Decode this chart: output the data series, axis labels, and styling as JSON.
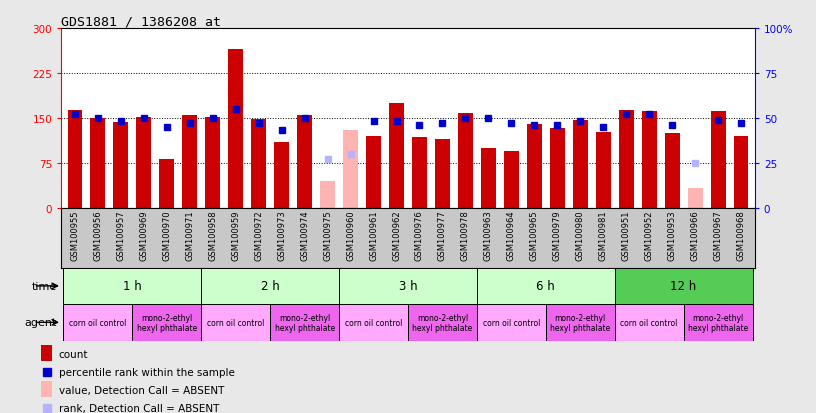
{
  "title": "GDS1881 / 1386208_at",
  "samples": [
    "GSM100955",
    "GSM100956",
    "GSM100957",
    "GSM100969",
    "GSM100970",
    "GSM100971",
    "GSM100958",
    "GSM100959",
    "GSM100972",
    "GSM100973",
    "GSM100974",
    "GSM100975",
    "GSM100960",
    "GSM100961",
    "GSM100962",
    "GSM100976",
    "GSM100977",
    "GSM100978",
    "GSM100963",
    "GSM100964",
    "GSM100965",
    "GSM100979",
    "GSM100980",
    "GSM100981",
    "GSM100951",
    "GSM100952",
    "GSM100953",
    "GSM100966",
    "GSM100967",
    "GSM100968"
  ],
  "counts": [
    163,
    150,
    143,
    151,
    82,
    155,
    152,
    265,
    148,
    110,
    155,
    45,
    130,
    120,
    175,
    118,
    115,
    158,
    100,
    95,
    140,
    133,
    147,
    127,
    163,
    162,
    125,
    33,
    162,
    120
  ],
  "percentile_ranks": [
    52,
    50,
    48,
    50,
    45,
    47,
    50,
    55,
    47,
    43,
    50,
    null,
    null,
    48,
    48,
    46,
    47,
    50,
    50,
    47,
    46,
    46,
    48,
    45,
    52,
    52,
    46,
    null,
    49,
    47
  ],
  "absent_flags": [
    false,
    false,
    false,
    false,
    false,
    false,
    false,
    false,
    false,
    false,
    false,
    true,
    true,
    false,
    false,
    false,
    false,
    false,
    false,
    false,
    false,
    false,
    false,
    false,
    false,
    false,
    false,
    true,
    false,
    false
  ],
  "absent_rank_vals": [
    null,
    null,
    null,
    null,
    null,
    null,
    null,
    null,
    null,
    null,
    null,
    27,
    30,
    null,
    null,
    null,
    null,
    null,
    null,
    null,
    null,
    null,
    null,
    null,
    null,
    null,
    null,
    25,
    null,
    null
  ],
  "time_groups": [
    {
      "label": "1 h",
      "start": 0,
      "end": 5
    },
    {
      "label": "2 h",
      "start": 6,
      "end": 11
    },
    {
      "label": "3 h",
      "start": 12,
      "end": 17
    },
    {
      "label": "6 h",
      "start": 18,
      "end": 23
    },
    {
      "label": "12 h",
      "start": 24,
      "end": 29
    }
  ],
  "agent_groups": [
    {
      "label": "corn oil control",
      "start": 0,
      "end": 2
    },
    {
      "label": "mono-2-ethyl\nhexyl phthalate",
      "start": 3,
      "end": 5
    },
    {
      "label": "corn oil control",
      "start": 6,
      "end": 8
    },
    {
      "label": "mono-2-ethyl\nhexyl phthalate",
      "start": 9,
      "end": 11
    },
    {
      "label": "corn oil control",
      "start": 12,
      "end": 14
    },
    {
      "label": "mono-2-ethyl\nhexyl phthalate",
      "start": 15,
      "end": 17
    },
    {
      "label": "corn oil control",
      "start": 18,
      "end": 20
    },
    {
      "label": "mono-2-ethyl\nhexyl phthalate",
      "start": 21,
      "end": 23
    },
    {
      "label": "corn oil control",
      "start": 24,
      "end": 26
    },
    {
      "label": "mono-2-ethyl\nhexyl phthalate",
      "start": 27,
      "end": 29
    }
  ],
  "ylim_left": [
    0,
    300
  ],
  "ylim_right": [
    0,
    100
  ],
  "yticks_left": [
    0,
    75,
    150,
    225,
    300
  ],
  "yticks_right": [
    0,
    25,
    50,
    75,
    100
  ],
  "bar_color_normal": "#cc0000",
  "bar_color_absent": "#ffb3b3",
  "dot_color_normal": "#0000cc",
  "dot_color_absent": "#b3b3ff",
  "plot_bg": "#f0f0f0",
  "chart_bg": "#ffffff",
  "time_row_color_light": "#ccffcc",
  "time_row_color_dark": "#55cc55",
  "agent_row_color_corn": "#ffaaff",
  "agent_row_color_mono": "#ee66ee",
  "sample_band_bg": "#c8c8c8",
  "bar_width": 0.65
}
